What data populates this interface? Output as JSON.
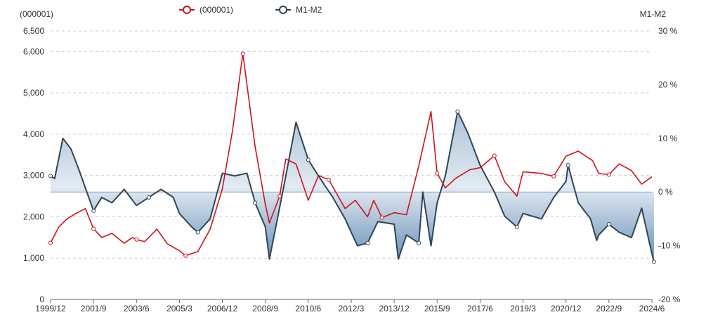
{
  "chart_data": {
    "type": "line",
    "left_axis_title": "(000001)",
    "right_axis_title": "M1-M2",
    "legend": [
      {
        "name": "(000001)",
        "color": "#d0121b"
      },
      {
        "name": "M1-M2",
        "color": "#2f4554"
      }
    ],
    "legend_position": "top-center",
    "grid": true,
    "x_ticks": [
      "1999/12",
      "2001/9",
      "2003/6",
      "2005/3",
      "2006/12",
      "2008/9",
      "2010/6",
      "2012/3",
      "2013/12",
      "2015/9",
      "2017/6",
      "2019/3",
      "2020/12",
      "2022/9",
      "2024/6"
    ],
    "y_left": {
      "min": 0,
      "max": 6500,
      "ticks": [
        0,
        1000,
        2000,
        3000,
        4000,
        5000,
        6000,
        6500
      ],
      "tick_labels": [
        "0",
        "1,000",
        "2,000",
        "3,000",
        "4,000",
        "5,000",
        "6,000",
        "6,500"
      ]
    },
    "y_right": {
      "min": -20,
      "max": 30,
      "ticks": [
        -20,
        -10,
        0,
        10,
        20,
        30
      ],
      "tick_labels": [
        "-20 %",
        "-10 %",
        "0 %",
        "10 %",
        "20 %",
        "30 %"
      ]
    },
    "series": [
      {
        "name": "(000001)",
        "color": "#d0121b",
        "points": [
          [
            "1999/12",
            1370
          ],
          [
            "2000/4",
            1750
          ],
          [
            "2000/8",
            1950
          ],
          [
            "2000/12",
            2070
          ],
          [
            "2001/5",
            2200
          ],
          [
            "2001/9",
            1710
          ],
          [
            "2002/1",
            1500
          ],
          [
            "2002/6",
            1600
          ],
          [
            "2002/12",
            1360
          ],
          [
            "2003/4",
            1500
          ],
          [
            "2003/6",
            1450
          ],
          [
            "2003/10",
            1400
          ],
          [
            "2004/4",
            1700
          ],
          [
            "2004/9",
            1350
          ],
          [
            "2005/3",
            1180
          ],
          [
            "2005/6",
            1060
          ],
          [
            "2005/12",
            1160
          ],
          [
            "2006/6",
            1700
          ],
          [
            "2006/12",
            2680
          ],
          [
            "2007/5",
            4100
          ],
          [
            "2007/10",
            5950
          ],
          [
            "2007/12",
            5200
          ],
          [
            "2008/4",
            3700
          ],
          [
            "2008/9",
            2300
          ],
          [
            "2008/11",
            1850
          ],
          [
            "2009/4",
            2500
          ],
          [
            "2009/7",
            3400
          ],
          [
            "2009/12",
            3280
          ],
          [
            "2010/6",
            2400
          ],
          [
            "2010/11",
            3000
          ],
          [
            "2011/4",
            2900
          ],
          [
            "2011/12",
            2200
          ],
          [
            "2012/5",
            2400
          ],
          [
            "2012/11",
            2000
          ],
          [
            "2013/2",
            2400
          ],
          [
            "2013/6",
            1980
          ],
          [
            "2013/12",
            2100
          ],
          [
            "2014/6",
            2050
          ],
          [
            "2014/12",
            3230
          ],
          [
            "2015/6",
            4550
          ],
          [
            "2015/9",
            3050
          ],
          [
            "2016/1",
            2700
          ],
          [
            "2016/6",
            2930
          ],
          [
            "2017/1",
            3140
          ],
          [
            "2017/6",
            3190
          ],
          [
            "2018/1",
            3480
          ],
          [
            "2018/6",
            2850
          ],
          [
            "2018/12",
            2500
          ],
          [
            "2019/3",
            3090
          ],
          [
            "2019/12",
            3050
          ],
          [
            "2020/6",
            2980
          ],
          [
            "2020/12",
            3470
          ],
          [
            "2021/6",
            3590
          ],
          [
            "2022/1",
            3360
          ],
          [
            "2022/4",
            3050
          ],
          [
            "2022/9",
            3020
          ],
          [
            "2023/2",
            3280
          ],
          [
            "2023/8",
            3120
          ],
          [
            "2024/1",
            2790
          ],
          [
            "2024/6",
            2970
          ]
        ]
      },
      {
        "name": "M1-M2",
        "color": "#2f4554",
        "points": [
          [
            "1999/12",
            3
          ],
          [
            "2000/2",
            2.5
          ],
          [
            "2000/6",
            10
          ],
          [
            "2000/10",
            8
          ],
          [
            "2001/2",
            4
          ],
          [
            "2001/9",
            -3.5
          ],
          [
            "2002/1",
            -1
          ],
          [
            "2002/6",
            -2
          ],
          [
            "2002/12",
            0.5
          ],
          [
            "2003/6",
            -2.5
          ],
          [
            "2003/12",
            -1
          ],
          [
            "2004/6",
            0.5
          ],
          [
            "2004/12",
            -1
          ],
          [
            "2005/3",
            -4
          ],
          [
            "2005/9",
            -6.5
          ],
          [
            "2005/12",
            -7.5
          ],
          [
            "2006/6",
            -5
          ],
          [
            "2006/12",
            3.5
          ],
          [
            "2007/6",
            3
          ],
          [
            "2007/12",
            3.5
          ],
          [
            "2008/4",
            -2
          ],
          [
            "2008/9",
            -6.5
          ],
          [
            "2008/11",
            -12.5
          ],
          [
            "2009/6",
            1
          ],
          [
            "2009/12",
            13
          ],
          [
            "2010/6",
            6
          ],
          [
            "2010/11",
            3
          ],
          [
            "2011/6",
            -1
          ],
          [
            "2011/12",
            -5
          ],
          [
            "2012/6",
            -10
          ],
          [
            "2012/11",
            -9.5
          ],
          [
            "2013/4",
            -5.5
          ],
          [
            "2013/12",
            -6
          ],
          [
            "2014/2",
            -12.5
          ],
          [
            "2014/6",
            -8
          ],
          [
            "2014/12",
            -9.5
          ],
          [
            "2015/2",
            0
          ],
          [
            "2015/6",
            -10
          ],
          [
            "2015/9",
            -2
          ],
          [
            "2016/1",
            3
          ],
          [
            "2016/7",
            15
          ],
          [
            "2016/12",
            11
          ],
          [
            "2017/6",
            5
          ],
          [
            "2018/1",
            0
          ],
          [
            "2018/6",
            -4.5
          ],
          [
            "2018/12",
            -6.5
          ],
          [
            "2019/3",
            -4
          ],
          [
            "2019/12",
            -5
          ],
          [
            "2020/6",
            -1
          ],
          [
            "2020/12",
            2
          ],
          [
            "2021/1",
            5
          ],
          [
            "2021/6",
            -2
          ],
          [
            "2021/12",
            -5
          ],
          [
            "2022/3",
            -9
          ],
          [
            "2022/4",
            -8
          ],
          [
            "2022/9",
            -6
          ],
          [
            "2023/2",
            -7.5
          ],
          [
            "2023/8",
            -8.5
          ],
          [
            "2024/1",
            -3
          ],
          [
            "2024/6",
            -11.5
          ],
          [
            "2024/7",
            -13
          ]
        ]
      }
    ]
  }
}
